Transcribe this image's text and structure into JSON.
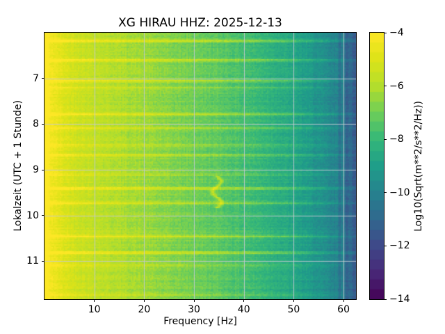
{
  "chart_data": {
    "type": "heatmap",
    "subtype": "spectrogram",
    "title": "XG HIRAU  HHZ: 2025-12-13",
    "xlabel": "Frequency [Hz]",
    "ylabel": "Lokalzeit (UTC + 1 Stunde)",
    "xlim": [
      0,
      62.5
    ],
    "ylim_top": 6.0,
    "ylim_bottom": 11.83,
    "y_axis_direction": "time increases downward",
    "xticks": [
      10,
      20,
      30,
      40,
      50,
      60
    ],
    "yticks": [
      7,
      8,
      9,
      10,
      11
    ],
    "grid": true,
    "grid_color": "#c6cad3",
    "colormap": "viridis",
    "colorbar": {
      "label": "Log10(Sqrt(m**2/s**2/Hz))",
      "ticks": [
        -4,
        -6,
        -8,
        -10,
        -12,
        -14
      ],
      "vmin": -14,
      "vmax": -4,
      "bands": 27
    },
    "spectral_profile": {
      "comment": "mean Log10 amplitude vs frequency, read from colormap",
      "freqs": [
        0,
        1,
        2,
        4,
        6,
        10,
        15,
        20,
        25,
        30,
        35,
        40,
        45,
        50,
        55,
        58,
        60,
        61.5,
        62.5
      ],
      "values": [
        -4.0,
        -4.2,
        -4.55,
        -5.0,
        -5.3,
        -5.7,
        -6.05,
        -6.35,
        -6.7,
        -7.0,
        -7.3,
        -7.7,
        -8.15,
        -8.7,
        -9.4,
        -9.9,
        -10.5,
        -11.2,
        -11.5
      ]
    },
    "time_streaks": [
      {
        "time": 6.18,
        "strength": 1.1
      },
      {
        "time": 6.6,
        "strength": 1.3
      },
      {
        "time": 7.05,
        "strength": 1.2
      },
      {
        "time": 7.2,
        "strength": 0.7
      },
      {
        "time": 7.78,
        "strength": 1.2
      },
      {
        "time": 8.08,
        "strength": 1.1
      },
      {
        "time": 8.45,
        "strength": 0.8
      },
      {
        "time": 8.67,
        "strength": 0.7
      },
      {
        "time": 9.1,
        "strength": 0.6
      },
      {
        "time": 9.4,
        "strength": 1.2
      },
      {
        "time": 9.71,
        "strength": 1.0
      },
      {
        "time": 10.44,
        "strength": 1.3
      },
      {
        "time": 10.8,
        "strength": 1.2
      },
      {
        "time": 11.08,
        "strength": 0.7
      },
      {
        "time": 11.72,
        "strength": 0.6
      }
    ],
    "transient_event": {
      "description": "curved narrow-band tonal glide",
      "freq_center": 34.6,
      "freq_swing": 0.9,
      "time_start": 9.13,
      "time_end": 9.82,
      "strength": 1.5
    },
    "noise": {
      "pixel": 0.55,
      "row": 0.36,
      "column": 0.26,
      "column_highfreq_extra": 0.8
    },
    "viridis_stops": [
      "#440154",
      "#482878",
      "#3e4989",
      "#31688e",
      "#26828e",
      "#1f9e89",
      "#35b779",
      "#6ece58",
      "#b5de2b",
      "#dde318",
      "#fde725"
    ]
  }
}
